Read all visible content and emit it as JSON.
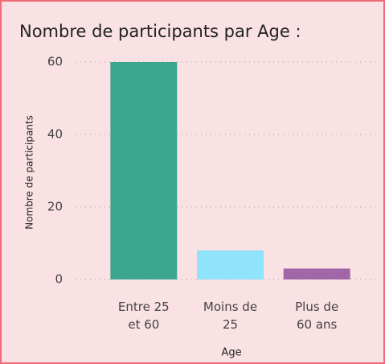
{
  "chart_data": {
    "type": "bar",
    "title": "Nombre de participants par Age :",
    "categories": [
      "Entre 25 et 60",
      "Moins de 25",
      "Plus de 60 ans"
    ],
    "series": [
      {
        "name": "Nombre de participants",
        "values": [
          60,
          8,
          3
        ],
        "colors": [
          "#3aa68e",
          "#8fe3fb",
          "#a066a8"
        ]
      }
    ],
    "x_label": "Age",
    "y_label": "Nombre de participants",
    "ylim": [
      0,
      60
    ],
    "yticks": [
      0,
      20,
      40,
      60
    ],
    "grid": true
  }
}
